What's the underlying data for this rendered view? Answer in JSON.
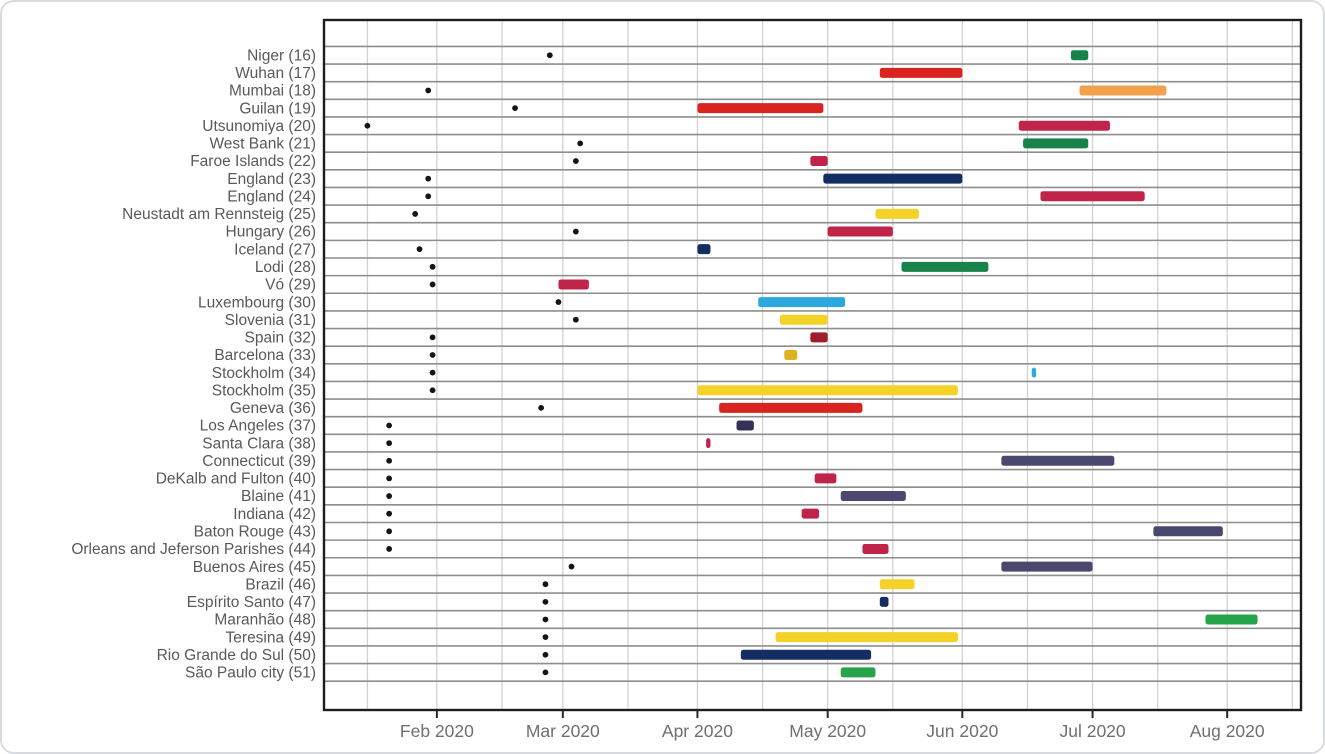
{
  "figure": {
    "description": "Timeline chart of study periods (colored bars) and first confirmed case dates (black dots) for locations 16-51",
    "background": "#ffffff",
    "card_border_color": "#d7dadf"
  },
  "chart_data": {
    "type": "bar",
    "variant": "gantt-timeline",
    "grid": "on",
    "legend": "none",
    "point_color": "#151515",
    "palette": {
      "red": "#da2420",
      "crimson": "#c02448",
      "darkred": "#a01d2b",
      "orange": "#f0a14b",
      "yellow": "#f4d227",
      "gold": "#dcb31e",
      "cyan": "#2ba9de",
      "navy": "#142e63",
      "indigo": "#343057",
      "slate": "#4b4870",
      "darkgreen": "#17834a",
      "green": "#27a34a"
    },
    "x_axis": {
      "start": "2020-01-06",
      "end": "2020-08-18",
      "ticks": [
        {
          "date": "2020-02-01",
          "label": "Feb 2020"
        },
        {
          "date": "2020-03-01",
          "label": "Mar 2020"
        },
        {
          "date": "2020-04-01",
          "label": "Apr 2020"
        },
        {
          "date": "2020-05-01",
          "label": "May 2020"
        },
        {
          "date": "2020-06-01",
          "label": "Jun 2020"
        },
        {
          "date": "2020-07-01",
          "label": "Jul 2020"
        },
        {
          "date": "2020-08-01",
          "label": "Aug 2020"
        }
      ]
    },
    "rows": [
      {
        "name": "Niger",
        "num": 16,
        "point": "2020-02-27",
        "bar": {
          "start": "2020-06-26",
          "end": "2020-06-30",
          "color": "darkgreen"
        }
      },
      {
        "name": "Wuhan",
        "num": 17,
        "point": null,
        "bar": {
          "start": "2020-05-13",
          "end": "2020-06-01",
          "color": "red"
        }
      },
      {
        "name": "Mumbai",
        "num": 18,
        "point": "2020-01-30",
        "bar": {
          "start": "2020-06-28",
          "end": "2020-07-18",
          "color": "orange"
        }
      },
      {
        "name": "Guilan",
        "num": 19,
        "point": "2020-02-19",
        "bar": {
          "start": "2020-04-01",
          "end": "2020-04-30",
          "color": "red"
        }
      },
      {
        "name": "Utsunomiya",
        "num": 20,
        "point": "2020-01-16",
        "bar": {
          "start": "2020-06-14",
          "end": "2020-07-05",
          "color": "crimson"
        }
      },
      {
        "name": "West Bank",
        "num": 21,
        "point": "2020-03-05",
        "bar": {
          "start": "2020-06-15",
          "end": "2020-06-30",
          "color": "darkgreen"
        }
      },
      {
        "name": "Faroe Islands",
        "num": 22,
        "point": "2020-03-04",
        "bar": {
          "start": "2020-04-27",
          "end": "2020-05-01",
          "color": "crimson"
        }
      },
      {
        "name": "England",
        "num": 23,
        "point": "2020-01-30",
        "bar": {
          "start": "2020-04-30",
          "end": "2020-06-01",
          "color": "navy"
        }
      },
      {
        "name": "England",
        "num": 24,
        "point": "2020-01-30",
        "bar": {
          "start": "2020-06-19",
          "end": "2020-07-13",
          "color": "crimson"
        }
      },
      {
        "name": "Neustadt am Rennsteig",
        "num": 25,
        "point": "2020-01-27",
        "bar": {
          "start": "2020-05-12",
          "end": "2020-05-22",
          "color": "yellow"
        }
      },
      {
        "name": "Hungary",
        "num": 26,
        "point": "2020-03-04",
        "bar": {
          "start": "2020-05-01",
          "end": "2020-05-16",
          "color": "crimson"
        }
      },
      {
        "name": "Iceland",
        "num": 27,
        "point": "2020-01-28",
        "bar": {
          "start": "2020-04-01",
          "end": "2020-04-04",
          "color": "navy"
        }
      },
      {
        "name": "Lodi",
        "num": 28,
        "point": "2020-01-31",
        "bar": {
          "start": "2020-05-18",
          "end": "2020-06-07",
          "color": "darkgreen"
        }
      },
      {
        "name": "Vó",
        "num": 29,
        "point": "2020-01-31",
        "bar": {
          "start": "2020-02-29",
          "end": "2020-03-07",
          "color": "crimson"
        }
      },
      {
        "name": "Luxembourg",
        "num": 30,
        "point": "2020-02-29",
        "bar": {
          "start": "2020-04-15",
          "end": "2020-05-05",
          "color": "cyan"
        }
      },
      {
        "name": "Slovenia",
        "num": 31,
        "point": "2020-03-04",
        "bar": {
          "start": "2020-04-20",
          "end": "2020-05-01",
          "color": "yellow"
        }
      },
      {
        "name": "Spain",
        "num": 32,
        "point": "2020-01-31",
        "bar": {
          "start": "2020-04-27",
          "end": "2020-05-01",
          "color": "darkred"
        }
      },
      {
        "name": "Barcelona",
        "num": 33,
        "point": "2020-01-31",
        "bar": {
          "start": "2020-04-21",
          "end": "2020-04-24",
          "color": "gold"
        }
      },
      {
        "name": "Stockholm",
        "num": 34,
        "point": "2020-01-31",
        "bar": {
          "start": "2020-06-17",
          "end": "2020-06-18",
          "color": "cyan"
        }
      },
      {
        "name": "Stockholm",
        "num": 35,
        "point": "2020-01-31",
        "bar": {
          "start": "2020-04-01",
          "end": "2020-05-31",
          "color": "yellow"
        }
      },
      {
        "name": "Geneva",
        "num": 36,
        "point": "2020-02-25",
        "bar": {
          "start": "2020-04-06",
          "end": "2020-05-09",
          "color": "red"
        }
      },
      {
        "name": "Los Angeles",
        "num": 37,
        "point": "2020-01-21",
        "bar": {
          "start": "2020-04-10",
          "end": "2020-04-14",
          "color": "indigo"
        }
      },
      {
        "name": "Santa Clara",
        "num": 38,
        "point": "2020-01-21",
        "bar": {
          "start": "2020-04-03",
          "end": "2020-04-04",
          "color": "crimson"
        }
      },
      {
        "name": "Connecticut",
        "num": 39,
        "point": "2020-01-21",
        "bar": {
          "start": "2020-06-10",
          "end": "2020-07-06",
          "color": "slate"
        }
      },
      {
        "name": "DeKalb and Fulton",
        "num": 40,
        "point": "2020-01-21",
        "bar": {
          "start": "2020-04-28",
          "end": "2020-05-03",
          "color": "crimson"
        }
      },
      {
        "name": "Blaine",
        "num": 41,
        "point": "2020-01-21",
        "bar": {
          "start": "2020-05-04",
          "end": "2020-05-19",
          "color": "slate"
        }
      },
      {
        "name": "Indiana",
        "num": 42,
        "point": "2020-01-21",
        "bar": {
          "start": "2020-04-25",
          "end": "2020-04-29",
          "color": "crimson"
        }
      },
      {
        "name": "Baton Rouge",
        "num": 43,
        "point": "2020-01-21",
        "bar": {
          "start": "2020-07-15",
          "end": "2020-07-31",
          "color": "slate"
        }
      },
      {
        "name": "Orleans and Jeferson Parishes",
        "num": 44,
        "point": "2020-01-21",
        "bar": {
          "start": "2020-05-09",
          "end": "2020-05-15",
          "color": "crimson"
        }
      },
      {
        "name": "Buenos Aires",
        "num": 45,
        "point": "2020-03-03",
        "bar": {
          "start": "2020-06-10",
          "end": "2020-07-01",
          "color": "slate"
        }
      },
      {
        "name": "Brazil",
        "num": 46,
        "point": "2020-02-26",
        "bar": {
          "start": "2020-05-13",
          "end": "2020-05-21",
          "color": "yellow"
        }
      },
      {
        "name": "Espírito Santo",
        "num": 47,
        "point": "2020-02-26",
        "bar": {
          "start": "2020-05-13",
          "end": "2020-05-15",
          "color": "navy"
        }
      },
      {
        "name": "Maranhão",
        "num": 48,
        "point": "2020-02-26",
        "bar": {
          "start": "2020-07-27",
          "end": "2020-08-08",
          "color": "green"
        }
      },
      {
        "name": "Teresina",
        "num": 49,
        "point": "2020-02-26",
        "bar": {
          "start": "2020-04-19",
          "end": "2020-05-31",
          "color": "yellow"
        }
      },
      {
        "name": "Rio Grande do Sul",
        "num": 50,
        "point": "2020-02-26",
        "bar": {
          "start": "2020-04-11",
          "end": "2020-05-11",
          "color": "navy"
        }
      },
      {
        "name": "São Paulo city",
        "num": 51,
        "point": "2020-02-26",
        "bar": {
          "start": "2020-05-04",
          "end": "2020-05-12",
          "color": "green"
        }
      }
    ]
  }
}
